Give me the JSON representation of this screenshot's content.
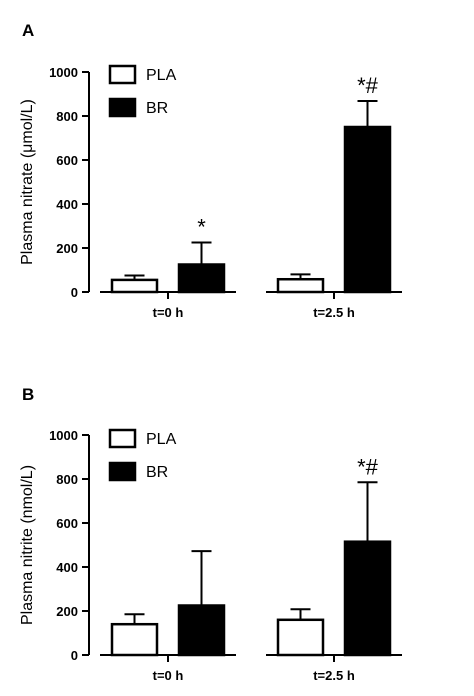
{
  "chart_data": [
    {
      "type": "bar",
      "panel": "A",
      "ylabel": "Plasma nitrate (μmol/L)",
      "ylim": [
        0,
        1000
      ],
      "yticks": [
        "0",
        "200",
        "400",
        "600",
        "800",
        "1000"
      ],
      "categories": [
        "t=0 h",
        "t=2.5 h"
      ],
      "legend": "top-left",
      "series": [
        {
          "name": "PLA",
          "fill": "#ffffff",
          "values": [
            55,
            58
          ],
          "errors": [
            20,
            22
          ]
        },
        {
          "name": "BR",
          "fill": "#000000",
          "values": [
            125,
            750
          ],
          "errors": [
            100,
            118
          ]
        }
      ],
      "annotations": [
        {
          "series": 1,
          "category": 0,
          "text": "*"
        },
        {
          "series": 1,
          "category": 1,
          "text": "*#"
        }
      ]
    },
    {
      "type": "bar",
      "panel": "B",
      "ylabel": "Plasma nitrite (nmol/L)",
      "ylim": [
        0,
        1000
      ],
      "yticks": [
        "0",
        "200",
        "400",
        "600",
        "800",
        "1000"
      ],
      "categories": [
        "t=0 h",
        "t=2.5 h"
      ],
      "legend": "top-left",
      "series": [
        {
          "name": "PLA",
          "fill": "#ffffff",
          "values": [
            140,
            160
          ],
          "errors": [
            45,
            48
          ]
        },
        {
          "name": "BR",
          "fill": "#000000",
          "values": [
            225,
            515
          ],
          "errors": [
            247,
            270
          ]
        }
      ],
      "annotations": [
        {
          "series": 1,
          "category": 1,
          "text": "*#"
        }
      ]
    }
  ]
}
